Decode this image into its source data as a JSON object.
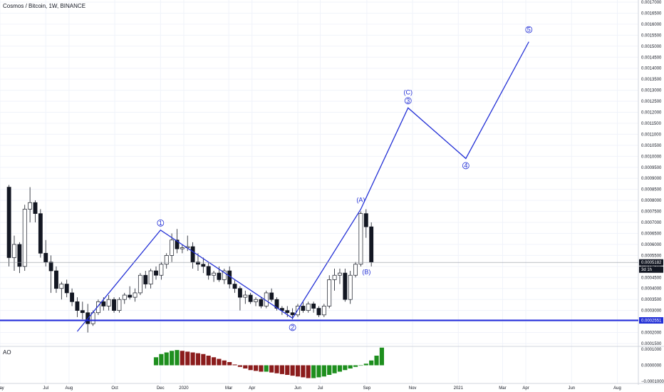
{
  "header": {
    "symbol_title": "Cosmos / Bitcoin, 1W, BINANCE"
  },
  "ao_panel": {
    "label": "AO",
    "ticks": [
      "0.0001000",
      "0.0000000",
      "−0.0001000"
    ]
  },
  "price_axis": {
    "ticks": [
      "0.0017000",
      "0.0016500",
      "0.0016000",
      "0.0015500",
      "0.0015000",
      "0.0014500",
      "0.0014000",
      "0.0013500",
      "0.0013000",
      "0.0012500",
      "0.0012000",
      "0.0011500",
      "0.0011000",
      "0.0010500",
      "0.0010000",
      "0.0009500",
      "0.0009000",
      "0.0008500",
      "0.0008000",
      "0.0007500",
      "0.0007000",
      "0.0006500",
      "0.0006000",
      "0.0005500",
      "0.0005000",
      "0.0004500",
      "0.0004000",
      "0.0003500",
      "0.0003000",
      "0.0002500",
      "0.0002000",
      "0.0001500"
    ],
    "current_price_badge": "0.0005182",
    "countdown_badge": "3d 1h",
    "support_badge": "0.0002551",
    "badge_color": "#131722",
    "support_badge_color": "#2431d6"
  },
  "time_axis": {
    "ticks": [
      "May",
      "Jul",
      "Aug",
      "Oct",
      "Dec",
      "2020",
      "Mar",
      "Apr",
      "Jun",
      "Jul",
      "Sep",
      "Nov",
      "2021",
      "Mar",
      "Apr",
      "Jun",
      "Aug"
    ]
  },
  "colors": {
    "wave_line": "#2431d6",
    "support_line": "#1c26d9",
    "candle_up": "#ffffff",
    "candle_down": "#131722",
    "ao_green": "#1e8f1e",
    "ao_red": "#8b1c1c",
    "grid": "#f0f3fa"
  },
  "wave_labels": {
    "w1": "1",
    "w2": "2",
    "w3": "3",
    "w4": "4",
    "w5": "5",
    "wA": "(A)",
    "wB": "(B)",
    "wC": "(C)"
  },
  "chart_data": {
    "type": "candlestick",
    "symbol": "Cosmos / Bitcoin",
    "interval": "1W",
    "exchange": "BINANCE",
    "current_price": 0.0005182,
    "support_level": 0.0002551,
    "candles": [
      [
        0.00086,
        0.00087,
        0.0005,
        0.00054
      ],
      [
        0.00054,
        0.00064,
        0.00048,
        0.0006
      ],
      [
        0.0006,
        0.00061,
        0.00047,
        0.0005
      ],
      [
        0.0005,
        0.00078,
        0.00048,
        0.00076
      ],
      [
        0.00076,
        0.00086,
        0.0007,
        0.00079
      ],
      [
        0.00079,
        0.0008,
        0.0007,
        0.00074
      ],
      [
        0.00074,
        0.00076,
        0.00054,
        0.00056
      ],
      [
        0.00056,
        0.00062,
        0.0005,
        0.00052
      ],
      [
        0.00052,
        0.00055,
        0.00038,
        0.00048
      ],
      [
        0.00048,
        0.0005,
        0.00038,
        0.0004
      ],
      [
        0.0004,
        0.00043,
        0.00035,
        0.00042
      ],
      [
        0.00042,
        0.00044,
        0.00036,
        0.00038
      ],
      [
        0.00038,
        0.0004,
        0.00032,
        0.00034
      ],
      [
        0.00034,
        0.00036,
        0.00027,
        0.0003
      ],
      [
        0.0003,
        0.00034,
        0.00026,
        0.00029
      ],
      [
        0.00029,
        0.00033,
        0.0002,
        0.00024
      ],
      [
        0.00024,
        0.0003,
        0.00023,
        0.00029
      ],
      [
        0.00029,
        0.00035,
        0.00028,
        0.00034
      ],
      [
        0.00034,
        0.00036,
        0.0003,
        0.00032
      ],
      [
        0.00032,
        0.00037,
        0.0003,
        0.00035
      ],
      [
        0.00035,
        0.00036,
        0.00029,
        0.0003
      ],
      [
        0.0003,
        0.00036,
        0.00029,
        0.00035
      ],
      [
        0.00035,
        0.00038,
        0.00033,
        0.00037
      ],
      [
        0.00037,
        0.00041,
        0.00035,
        0.00036
      ],
      [
        0.00036,
        0.0004,
        0.00034,
        0.00038
      ],
      [
        0.00038,
        0.00047,
        0.00037,
        0.00046
      ],
      [
        0.00046,
        0.00048,
        0.0004,
        0.00042
      ],
      [
        0.00042,
        0.00049,
        0.0004,
        0.00048
      ],
      [
        0.00048,
        0.0005,
        0.00044,
        0.00046
      ],
      [
        0.00046,
        0.00052,
        0.00044,
        0.00051
      ],
      [
        0.00051,
        0.00056,
        0.00049,
        0.00055
      ],
      [
        0.00055,
        0.00065,
        0.00052,
        0.00062
      ],
      [
        0.00062,
        0.00067,
        0.00056,
        0.00058
      ],
      [
        0.00058,
        0.0006,
        0.00056,
        0.000585
      ],
      [
        0.000585,
        0.00064,
        0.00057,
        0.00059
      ],
      [
        0.00059,
        0.00061,
        0.00049,
        0.00052
      ],
      [
        0.00052,
        0.00056,
        0.00048,
        0.00051
      ],
      [
        0.00051,
        0.00054,
        0.00047,
        0.0005
      ],
      [
        0.0005,
        0.00052,
        0.00044,
        0.00046
      ],
      [
        0.00046,
        0.00048,
        0.00043,
        0.00047
      ],
      [
        0.00047,
        0.0005,
        0.00043,
        0.00044
      ],
      [
        0.00044,
        0.00049,
        0.00042,
        0.00048
      ],
      [
        0.00048,
        0.0005,
        0.0004,
        0.00042
      ],
      [
        0.00042,
        0.00044,
        0.00038,
        0.0004
      ],
      [
        0.0004,
        0.00041,
        0.0003,
        0.00036
      ],
      [
        0.00036,
        0.00039,
        0.00033,
        0.00037
      ],
      [
        0.00037,
        0.00038,
        0.00033,
        0.00034
      ],
      [
        0.00034,
        0.00036,
        0.00032,
        0.00035
      ],
      [
        0.00035,
        0.00036,
        0.00031,
        0.00032
      ],
      [
        0.00032,
        0.00039,
        0.00031,
        0.00038
      ],
      [
        0.00038,
        0.0004,
        0.00034,
        0.00035
      ],
      [
        0.00035,
        0.00036,
        0.0003,
        0.00031
      ],
      [
        0.00031,
        0.00032,
        0.00028,
        0.0003
      ],
      [
        0.0003,
        0.00032,
        0.00027,
        0.00029
      ],
      [
        0.00029,
        0.00031,
        0.00026,
        0.00028
      ],
      [
        0.00028,
        0.00033,
        0.00027,
        0.00032
      ],
      [
        0.00032,
        0.00034,
        0.00029,
        0.0003
      ],
      [
        0.0003,
        0.00034,
        0.00029,
        0.00033
      ],
      [
        0.00033,
        0.00034,
        0.00029,
        0.00031
      ],
      [
        0.00031,
        0.00032,
        0.00027,
        0.00028
      ],
      [
        0.00028,
        0.00033,
        0.00027,
        0.00032
      ],
      [
        0.00032,
        0.00046,
        0.00031,
        0.00044
      ],
      [
        0.00044,
        0.00049,
        0.00039,
        0.00046
      ],
      [
        0.00046,
        0.00049,
        0.00042,
        0.00047
      ],
      [
        0.00047,
        0.00049,
        0.00034,
        0.00035
      ],
      [
        0.00035,
        0.00048,
        0.00033,
        0.00046
      ],
      [
        0.00046,
        0.00052,
        0.00045,
        0.00051
      ],
      [
        0.00051,
        0.00075,
        0.0005,
        0.00074
      ],
      [
        0.00074,
        0.00076,
        0.00063,
        0.00068
      ],
      [
        0.00068,
        0.0007,
        0.0005,
        0.00052
      ]
    ],
    "ao_values": [
      5e-05,
      7e-05,
      8e-05,
      9e-05,
      9.5e-05,
      9e-05,
      8.5e-05,
      8e-05,
      7.5e-05,
      7e-05,
      6e-05,
      5e-05,
      4e-05,
      3e-05,
      2e-05,
      5e-06,
      -1e-05,
      -2e-05,
      -3e-05,
      -3.5e-05,
      -4e-05,
      -4e-05,
      -4.5e-05,
      -5e-05,
      -5.5e-05,
      -6e-05,
      -6.5e-05,
      -7e-05,
      -7.5e-05,
      -8e-05,
      -8e-05,
      -7.5e-05,
      -7e-05,
      -6e-05,
      -5e-05,
      -4e-05,
      -3e-05,
      -2e-05,
      -1e-05,
      0.0,
      1e-05,
      3e-05,
      6e-05,
      0.00011
    ],
    "elliott_wave": [
      {
        "date": "2019-08-12",
        "price": 0.000205
      },
      {
        "date": "2019-12-01",
        "price": 0.000665
      },
      {
        "date": "2020-05-25",
        "price": 0.000265
      },
      {
        "date": "2020-08-24",
        "price": 0.00076
      },
      {
        "date": "2020-10-26",
        "price": 0.00122
      },
      {
        "date": "2021-01-11",
        "price": 0.00099
      },
      {
        "date": "2021-04-05",
        "price": 0.00152
      }
    ],
    "y_range": [
      0.00015,
      0.0017
    ],
    "ao_range": [
      -0.0001,
      0.0001
    ]
  }
}
